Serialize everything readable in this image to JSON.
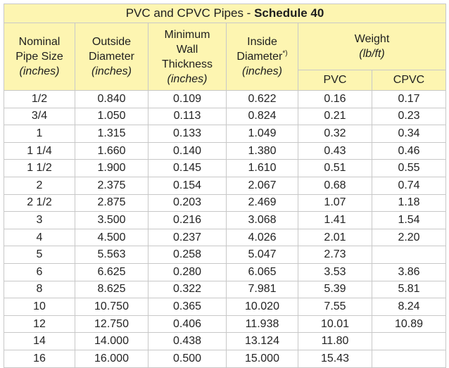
{
  "table": {
    "title_prefix": "PVC and CPVC Pipes - ",
    "title_bold": "Schedule 40",
    "headers": {
      "nominal": {
        "lines": [
          "Nominal",
          "Pipe Size"
        ],
        "unit": "(inches)"
      },
      "outside": {
        "lines": [
          "Outside",
          "Diameter"
        ],
        "unit": "(inches)"
      },
      "wall": {
        "lines": [
          "Minimum",
          "Wall",
          "Thickness"
        ],
        "unit": "(inches)"
      },
      "inside": {
        "lines": [
          "Inside",
          "Diameter"
        ],
        "sup": "*)",
        "unit": "(inches)"
      },
      "weight": {
        "lines": [
          "Weight"
        ],
        "unit": "(lb/ft)"
      },
      "pvc": "PVC",
      "cpvc": "CPVC"
    },
    "rows": [
      [
        "1/2",
        "0.840",
        "0.109",
        "0.622",
        "0.16",
        "0.17"
      ],
      [
        "3/4",
        "1.050",
        "0.113",
        "0.824",
        "0.21",
        "0.23"
      ],
      [
        "1",
        "1.315",
        "0.133",
        "1.049",
        "0.32",
        "0.34"
      ],
      [
        "1 1/4",
        "1.660",
        "0.140",
        "1.380",
        "0.43",
        "0.46"
      ],
      [
        "1 1/2",
        "1.900",
        "0.145",
        "1.610",
        "0.51",
        "0.55"
      ],
      [
        "2",
        "2.375",
        "0.154",
        "2.067",
        "0.68",
        "0.74"
      ],
      [
        "2 1/2",
        "2.875",
        "0.203",
        "2.469",
        "1.07",
        "1.18"
      ],
      [
        "3",
        "3.500",
        "0.216",
        "3.068",
        "1.41",
        "1.54"
      ],
      [
        "4",
        "4.500",
        "0.237",
        "4.026",
        "2.01",
        "2.20"
      ],
      [
        "5",
        "5.563",
        "0.258",
        "5.047",
        "2.73",
        ""
      ],
      [
        "6",
        "6.625",
        "0.280",
        "6.065",
        "3.53",
        "3.86"
      ],
      [
        "8",
        "8.625",
        "0.322",
        "7.981",
        "5.39",
        "5.81"
      ],
      [
        "10",
        "10.750",
        "0.365",
        "10.020",
        "7.55",
        "8.24"
      ],
      [
        "12",
        "12.750",
        "0.406",
        "11.938",
        "10.01",
        "10.89"
      ],
      [
        "14",
        "14.000",
        "0.438",
        "13.124",
        "11.80",
        ""
      ],
      [
        "16",
        "16.000",
        "0.500",
        "15.000",
        "15.43",
        ""
      ]
    ]
  }
}
